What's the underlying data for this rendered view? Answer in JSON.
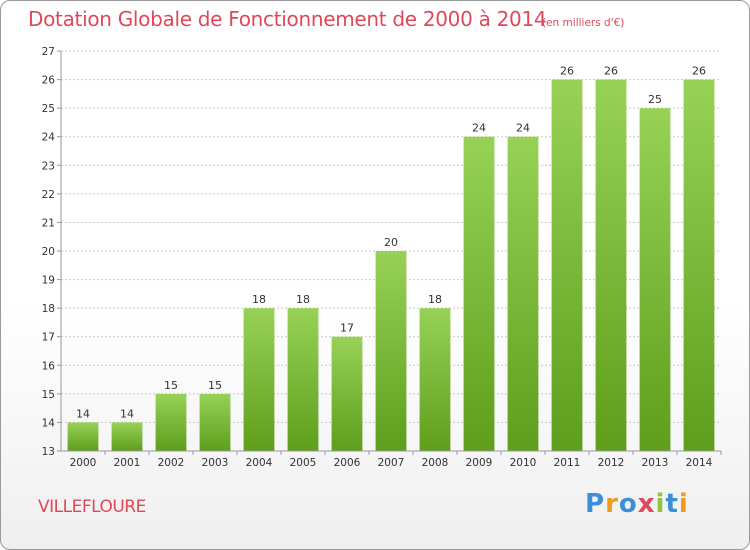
{
  "header": {
    "title": "Dotation Globale de Fonctionnement de 2000 à 2014",
    "subtitle": "(en milliers d'€)"
  },
  "commune": "VILLEFLOURE",
  "logo": {
    "text": "Proxiti",
    "letters": [
      {
        "ch": "P",
        "color": "#3a8fd6"
      },
      {
        "ch": "r",
        "color": "#f29a1f"
      },
      {
        "ch": "o",
        "color": "#3a8fd6"
      },
      {
        "ch": "x",
        "color": "#e0485a"
      },
      {
        "ch": "i",
        "color": "#8cc63f"
      },
      {
        "ch": "t",
        "color": "#3a8fd6"
      },
      {
        "ch": "i",
        "color": "#f29a1f"
      }
    ]
  },
  "colors": {
    "bar_top": "#97d256",
    "bar_bottom": "#5e9e1c",
    "grid": "#c8c8c8",
    "axis": "#999999",
    "accent": "#e0485a"
  },
  "chart_data": {
    "type": "bar",
    "title": "Dotation Globale de Fonctionnement de 2000 à 2014",
    "subtitle": "(en milliers d'€)",
    "xlabel": "",
    "ylabel": "",
    "categories": [
      "2000",
      "2001",
      "2002",
      "2003",
      "2004",
      "2005",
      "2006",
      "2007",
      "2008",
      "2009",
      "2010",
      "2011",
      "2012",
      "2013",
      "2014"
    ],
    "values": [
      14,
      14,
      15,
      15,
      18,
      18,
      17,
      20,
      18,
      24,
      24,
      26,
      26,
      25,
      26
    ],
    "ylim": [
      13,
      27
    ],
    "yticks": [
      13,
      14,
      15,
      16,
      17,
      18,
      19,
      20,
      21,
      22,
      23,
      24,
      25,
      26,
      27
    ],
    "grid": true,
    "legend": "none"
  }
}
